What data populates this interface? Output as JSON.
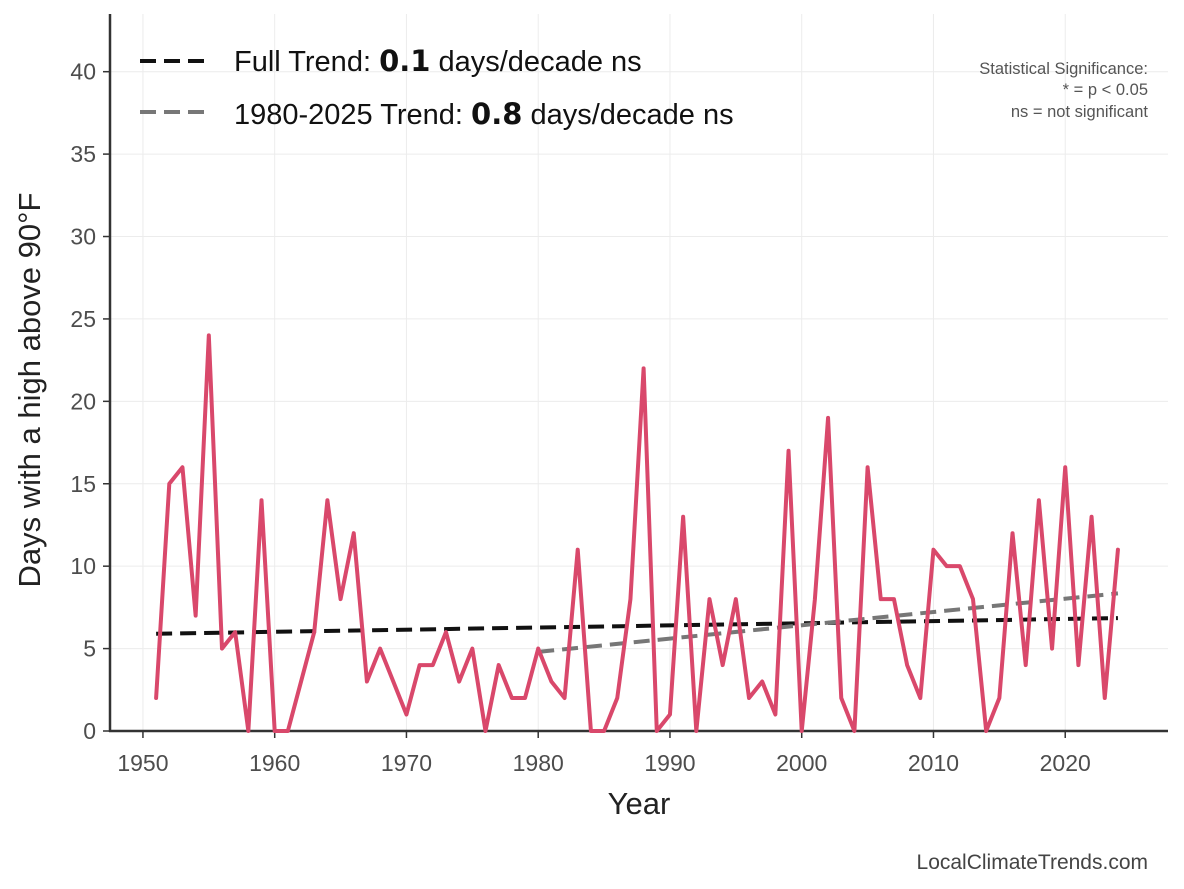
{
  "chart_data": {
    "type": "line",
    "xlabel": "Year",
    "ylabel": "Days with a high above 90°F",
    "xlim": [
      1947.5,
      2027.8
    ],
    "ylim": [
      0,
      43.5
    ],
    "xticks": [
      1950,
      1960,
      1970,
      1980,
      1990,
      2000,
      2010,
      2020
    ],
    "yticks": [
      0,
      5,
      10,
      15,
      20,
      25,
      30,
      35,
      40
    ],
    "grid": true,
    "legend_position": "top-left",
    "series": [
      {
        "color": "#d9486b",
        "style": "solid",
        "x": [
          1951,
          1952,
          1953,
          1954,
          1955,
          1956,
          1957,
          1958,
          1959,
          1960,
          1961,
          1962,
          1963,
          1964,
          1965,
          1966,
          1967,
          1968,
          1969,
          1970,
          1971,
          1972,
          1973,
          1974,
          1975,
          1976,
          1977,
          1978,
          1979,
          1980,
          1981,
          1982,
          1983,
          1984,
          1985,
          1986,
          1987,
          1988,
          1989,
          1990,
          1991,
          1992,
          1993,
          1994,
          1995,
          1996,
          1997,
          1998,
          1999,
          2000,
          2001,
          2002,
          2003,
          2004,
          2005,
          2006,
          2007,
          2008,
          2009,
          2010,
          2011,
          2012,
          2013,
          2014,
          2015,
          2016,
          2017,
          2018,
          2019,
          2020,
          2021,
          2022,
          2023,
          2024
        ],
        "y": [
          2,
          15,
          16,
          7,
          24,
          5,
          6,
          0,
          14,
          0,
          0,
          3,
          6,
          14,
          8,
          12,
          3,
          5,
          3,
          1,
          4,
          4,
          6,
          3,
          5,
          0,
          4,
          2,
          2,
          5,
          3,
          2,
          11,
          0,
          0,
          2,
          8,
          22,
          0,
          1,
          13,
          0,
          8,
          4,
          8,
          2,
          3,
          1,
          17,
          0,
          8,
          19,
          2,
          0,
          16,
          8,
          8,
          4,
          2,
          11,
          10,
          10,
          8,
          0,
          2,
          12,
          4,
          14,
          5,
          16,
          4,
          13,
          2,
          11
        ]
      }
    ],
    "trends": [
      {
        "label_prefix": "Full Trend: ",
        "value": "0.1",
        "label_suffix": " days/decade ns",
        "color": "#111111",
        "style": "dashed",
        "x": [
          1951,
          2024
        ],
        "y": [
          5.9,
          6.85
        ]
      },
      {
        "label_prefix": "1980-2025 Trend: ",
        "value": "0.8",
        "label_suffix": " days/decade ns",
        "color": "#777777",
        "style": "dashed",
        "x": [
          1980,
          2024
        ],
        "y": [
          4.8,
          8.35
        ]
      }
    ],
    "annotations": {
      "significance_title": "Statistical Significance:",
      "significance_star": "* = p < 0.05",
      "significance_ns": "ns = not significant"
    }
  },
  "footer": {
    "site": "LocalClimateTrends.com"
  }
}
